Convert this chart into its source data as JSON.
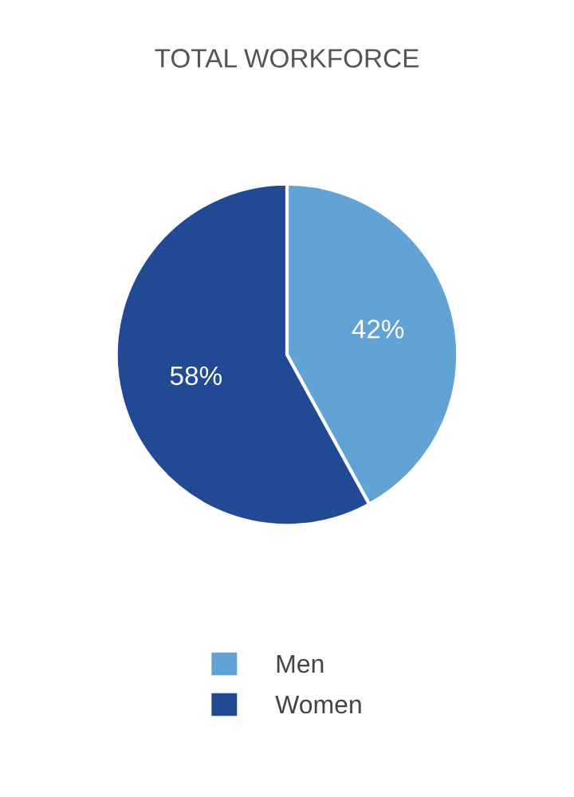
{
  "chart_data": {
    "type": "pie",
    "title": "TOTAL WORKFORCE",
    "categories": [
      "Men",
      "Women"
    ],
    "values": [
      42,
      58
    ],
    "colors": [
      "#62a3d5",
      "#224a94"
    ],
    "value_labels": [
      "42%",
      "58%"
    ],
    "legend": "bottom"
  }
}
